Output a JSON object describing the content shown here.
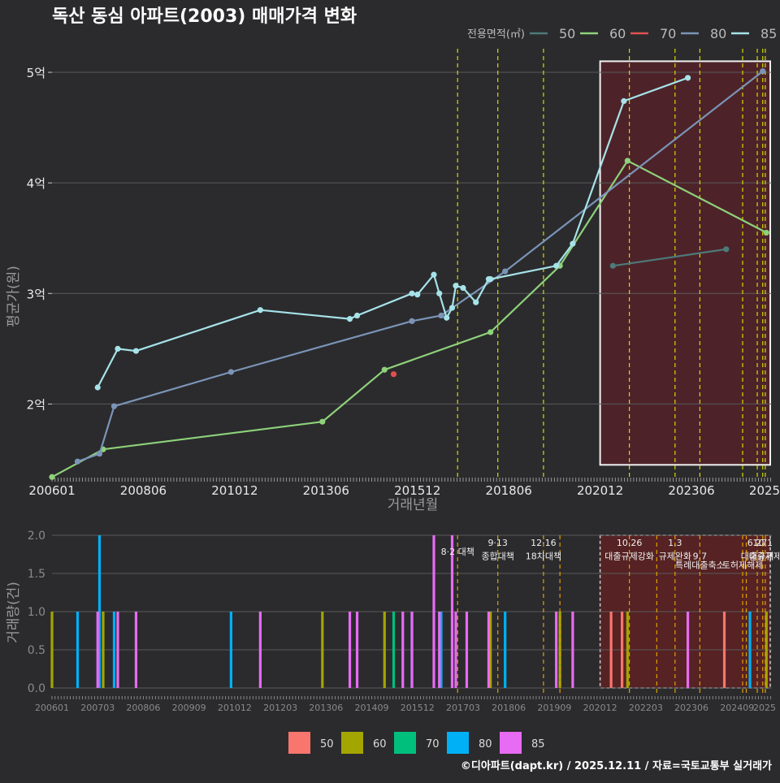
{
  "title": "독산 동심 아파트(2003) 매매가격 변화",
  "footer": "©디아파트(dapt.kr) / 2025.12.11 / 자료=국토교통부 실거래가",
  "colors": {
    "background": "#2b2b2d",
    "grid": "#5a5a5c",
    "highlight_fill": "#5a2228",
    "highlight_stroke": "#f0f0f0",
    "policy_line": "#d8d800",
    "policy_line_bottom": "#e0a000"
  },
  "chart_data": [
    {
      "type": "line",
      "title": "독산 동심 아파트(2003) 매매가격 변화",
      "xlabel": "거래년월",
      "ylabel": "평균가(원)",
      "xlim": [
        2006.0,
        2025.7
      ],
      "ylim": [
        1.32,
        5.25
      ],
      "yticks": [
        2,
        3,
        4,
        5
      ],
      "ytick_labels": [
        "2억",
        "3억",
        "4억",
        "5억"
      ],
      "xticks": [
        2006.0,
        2008.5,
        2011.0,
        2013.5,
        2016.0,
        2018.5,
        2021.0,
        2023.5,
        2025.5
      ],
      "xtick_labels": [
        "200601",
        "200806",
        "201012",
        "201306",
        "201512",
        "201806",
        "202012",
        "202306",
        "2025"
      ],
      "legend_title": "전용면적(㎡)",
      "legend_position": "top-right",
      "highlight_range": {
        "x": [
          2021.0,
          2025.7
        ],
        "y": [
          1.45,
          5.1
        ]
      },
      "policy_x": [
        2017.1,
        2018.2,
        2019.45,
        2021.8,
        2023.05,
        2023.73,
        2024.9,
        2025.3,
        2025.45,
        2025.52
      ],
      "series": [
        {
          "name": "50",
          "color": "#4d7a7a",
          "x": [
            2021.35,
            2024.45
          ],
          "y": [
            3.25,
            3.4
          ]
        },
        {
          "name": "60",
          "color": "#8ed27a",
          "x": [
            2006.0,
            2007.4,
            2013.4,
            2015.1,
            2018.0,
            2019.9,
            2021.75,
            2025.55
          ],
          "y": [
            1.34,
            1.59,
            1.84,
            2.31,
            2.65,
            3.25,
            4.2,
            3.55
          ]
        },
        {
          "name": "70",
          "color": "#e05050",
          "x": [
            2015.35
          ],
          "y": [
            2.27
          ]
        },
        {
          "name": "80",
          "color": "#7b94b8",
          "x": [
            2006.7,
            2007.3,
            2007.7,
            2010.9,
            2015.85,
            2016.65,
            2018.4,
            2025.45
          ],
          "y": [
            1.48,
            1.55,
            1.98,
            2.29,
            2.75,
            2.8,
            3.2,
            5.01
          ]
        },
        {
          "name": "85",
          "color": "#a6e3e9",
          "x": [
            2007.25,
            2007.8,
            2008.3,
            2011.7,
            2014.15,
            2014.35,
            2015.85,
            2016.0,
            2016.45,
            2016.6,
            2016.8,
            2016.95,
            2017.05,
            2017.25,
            2017.6,
            2017.95,
            2018.0,
            2019.8,
            2020.25,
            2021.65,
            2023.4
          ],
          "y": [
            2.15,
            2.5,
            2.48,
            2.85,
            2.77,
            2.8,
            3.0,
            2.99,
            3.17,
            3.0,
            2.78,
            2.87,
            3.07,
            3.05,
            2.92,
            3.13,
            3.13,
            3.25,
            3.45,
            4.74,
            4.95
          ]
        }
      ]
    },
    {
      "type": "bar",
      "ylabel": "거래량(건)",
      "xlim": [
        2006.0,
        2025.7
      ],
      "ylim": [
        0,
        2.0
      ],
      "yticks": [
        0.0,
        0.5,
        1.0,
        1.5,
        2.0
      ],
      "ytick_labels": [
        "0.0",
        "0.5",
        "1.0",
        "1.5",
        "2.0"
      ],
      "xticks": [
        2006.0,
        2007.25,
        2008.5,
        2009.75,
        2011.0,
        2012.25,
        2013.5,
        2014.75,
        2016.0,
        2017.25,
        2018.5,
        2019.75,
        2021.0,
        2022.25,
        2023.5,
        2024.75,
        2025.5
      ],
      "xtick_labels": [
        "200601",
        "200703",
        "200806",
        "200909",
        "201012",
        "201203",
        "201306",
        "201409",
        "201512",
        "201703",
        "201806",
        "201909",
        "202012",
        "202203",
        "202306",
        "202409",
        "2025"
      ],
      "highlight_range": {
        "x": [
          2021.0,
          2025.7
        ],
        "y": [
          0,
          2.0
        ]
      },
      "policy_x": [
        2017.1,
        2018.2,
        2019.45,
        2019.9,
        2021.8,
        2022.55,
        2023.05,
        2023.73,
        2024.9,
        2025.0,
        2025.3,
        2025.45,
        2025.52
      ],
      "annotations": [
        {
          "x": 2017.1,
          "row": 1,
          "text": "8·2 대책"
        },
        {
          "x": 2018.2,
          "row": 0,
          "text": "9·13"
        },
        {
          "x": 2018.2,
          "row": 1.5,
          "text": "종합대책"
        },
        {
          "x": 2019.45,
          "row": 0,
          "text": "12·16"
        },
        {
          "x": 2019.45,
          "row": 1.5,
          "text": "18차대책"
        },
        {
          "x": 2021.8,
          "row": 0,
          "text": "10.26"
        },
        {
          "x": 2021.8,
          "row": 1.5,
          "text": "대출규제강화"
        },
        {
          "x": 2023.05,
          "row": 0,
          "text": "1.3"
        },
        {
          "x": 2023.05,
          "row": 1.5,
          "text": "규제완화"
        },
        {
          "x": 2023.73,
          "row": 1.5,
          "text": "9.7"
        },
        {
          "x": 2023.73,
          "row": 2.5,
          "text": "특례대출축소"
        },
        {
          "x": 2024.9,
          "row": 2.5,
          "text": "토허제해제"
        },
        {
          "x": 2025.3,
          "row": 0,
          "text": "6.27"
        },
        {
          "x": 2025.3,
          "row": 1.5,
          "text": "대출규제"
        },
        {
          "x": 2025.45,
          "row": 0,
          "text": "10.1"
        },
        {
          "x": 2025.52,
          "row": 1.5,
          "text": "대출규제"
        }
      ],
      "series": [
        {
          "name": "50",
          "color": "#f8766d",
          "x": [
            2021.3,
            2021.6,
            2024.4
          ],
          "values": [
            1,
            1,
            1
          ]
        },
        {
          "name": "60",
          "color": "#a3a500",
          "x": [
            2006.0,
            2007.4,
            2013.4,
            2015.1,
            2018.0,
            2019.9,
            2021.75,
            2025.55
          ],
          "values": [
            1,
            1,
            1,
            1,
            1,
            1,
            1,
            1
          ]
        },
        {
          "name": "70",
          "color": "#00bf7d",
          "x": [
            2015.35
          ],
          "values": [
            1
          ]
        },
        {
          "name": "80",
          "color": "#00b0f6",
          "x": [
            2006.7,
            2007.3,
            2007.7,
            2010.9,
            2015.85,
            2016.65,
            2018.4,
            2025.1
          ],
          "values": [
            1,
            2,
            1,
            1,
            1,
            1,
            1,
            1
          ]
        },
        {
          "name": "85",
          "color": "#e76bf3",
          "x": [
            2007.25,
            2007.8,
            2008.3,
            2011.7,
            2014.15,
            2014.35,
            2015.6,
            2015.85,
            2016.45,
            2016.6,
            2016.95,
            2017.05,
            2017.35,
            2017.95,
            2020.25,
            2023.4,
            2019.8
          ],
          "values": [
            1,
            1,
            1,
            1,
            1,
            1,
            1,
            1,
            2,
            1,
            2,
            1,
            1,
            1,
            1,
            1,
            1
          ]
        }
      ]
    }
  ]
}
